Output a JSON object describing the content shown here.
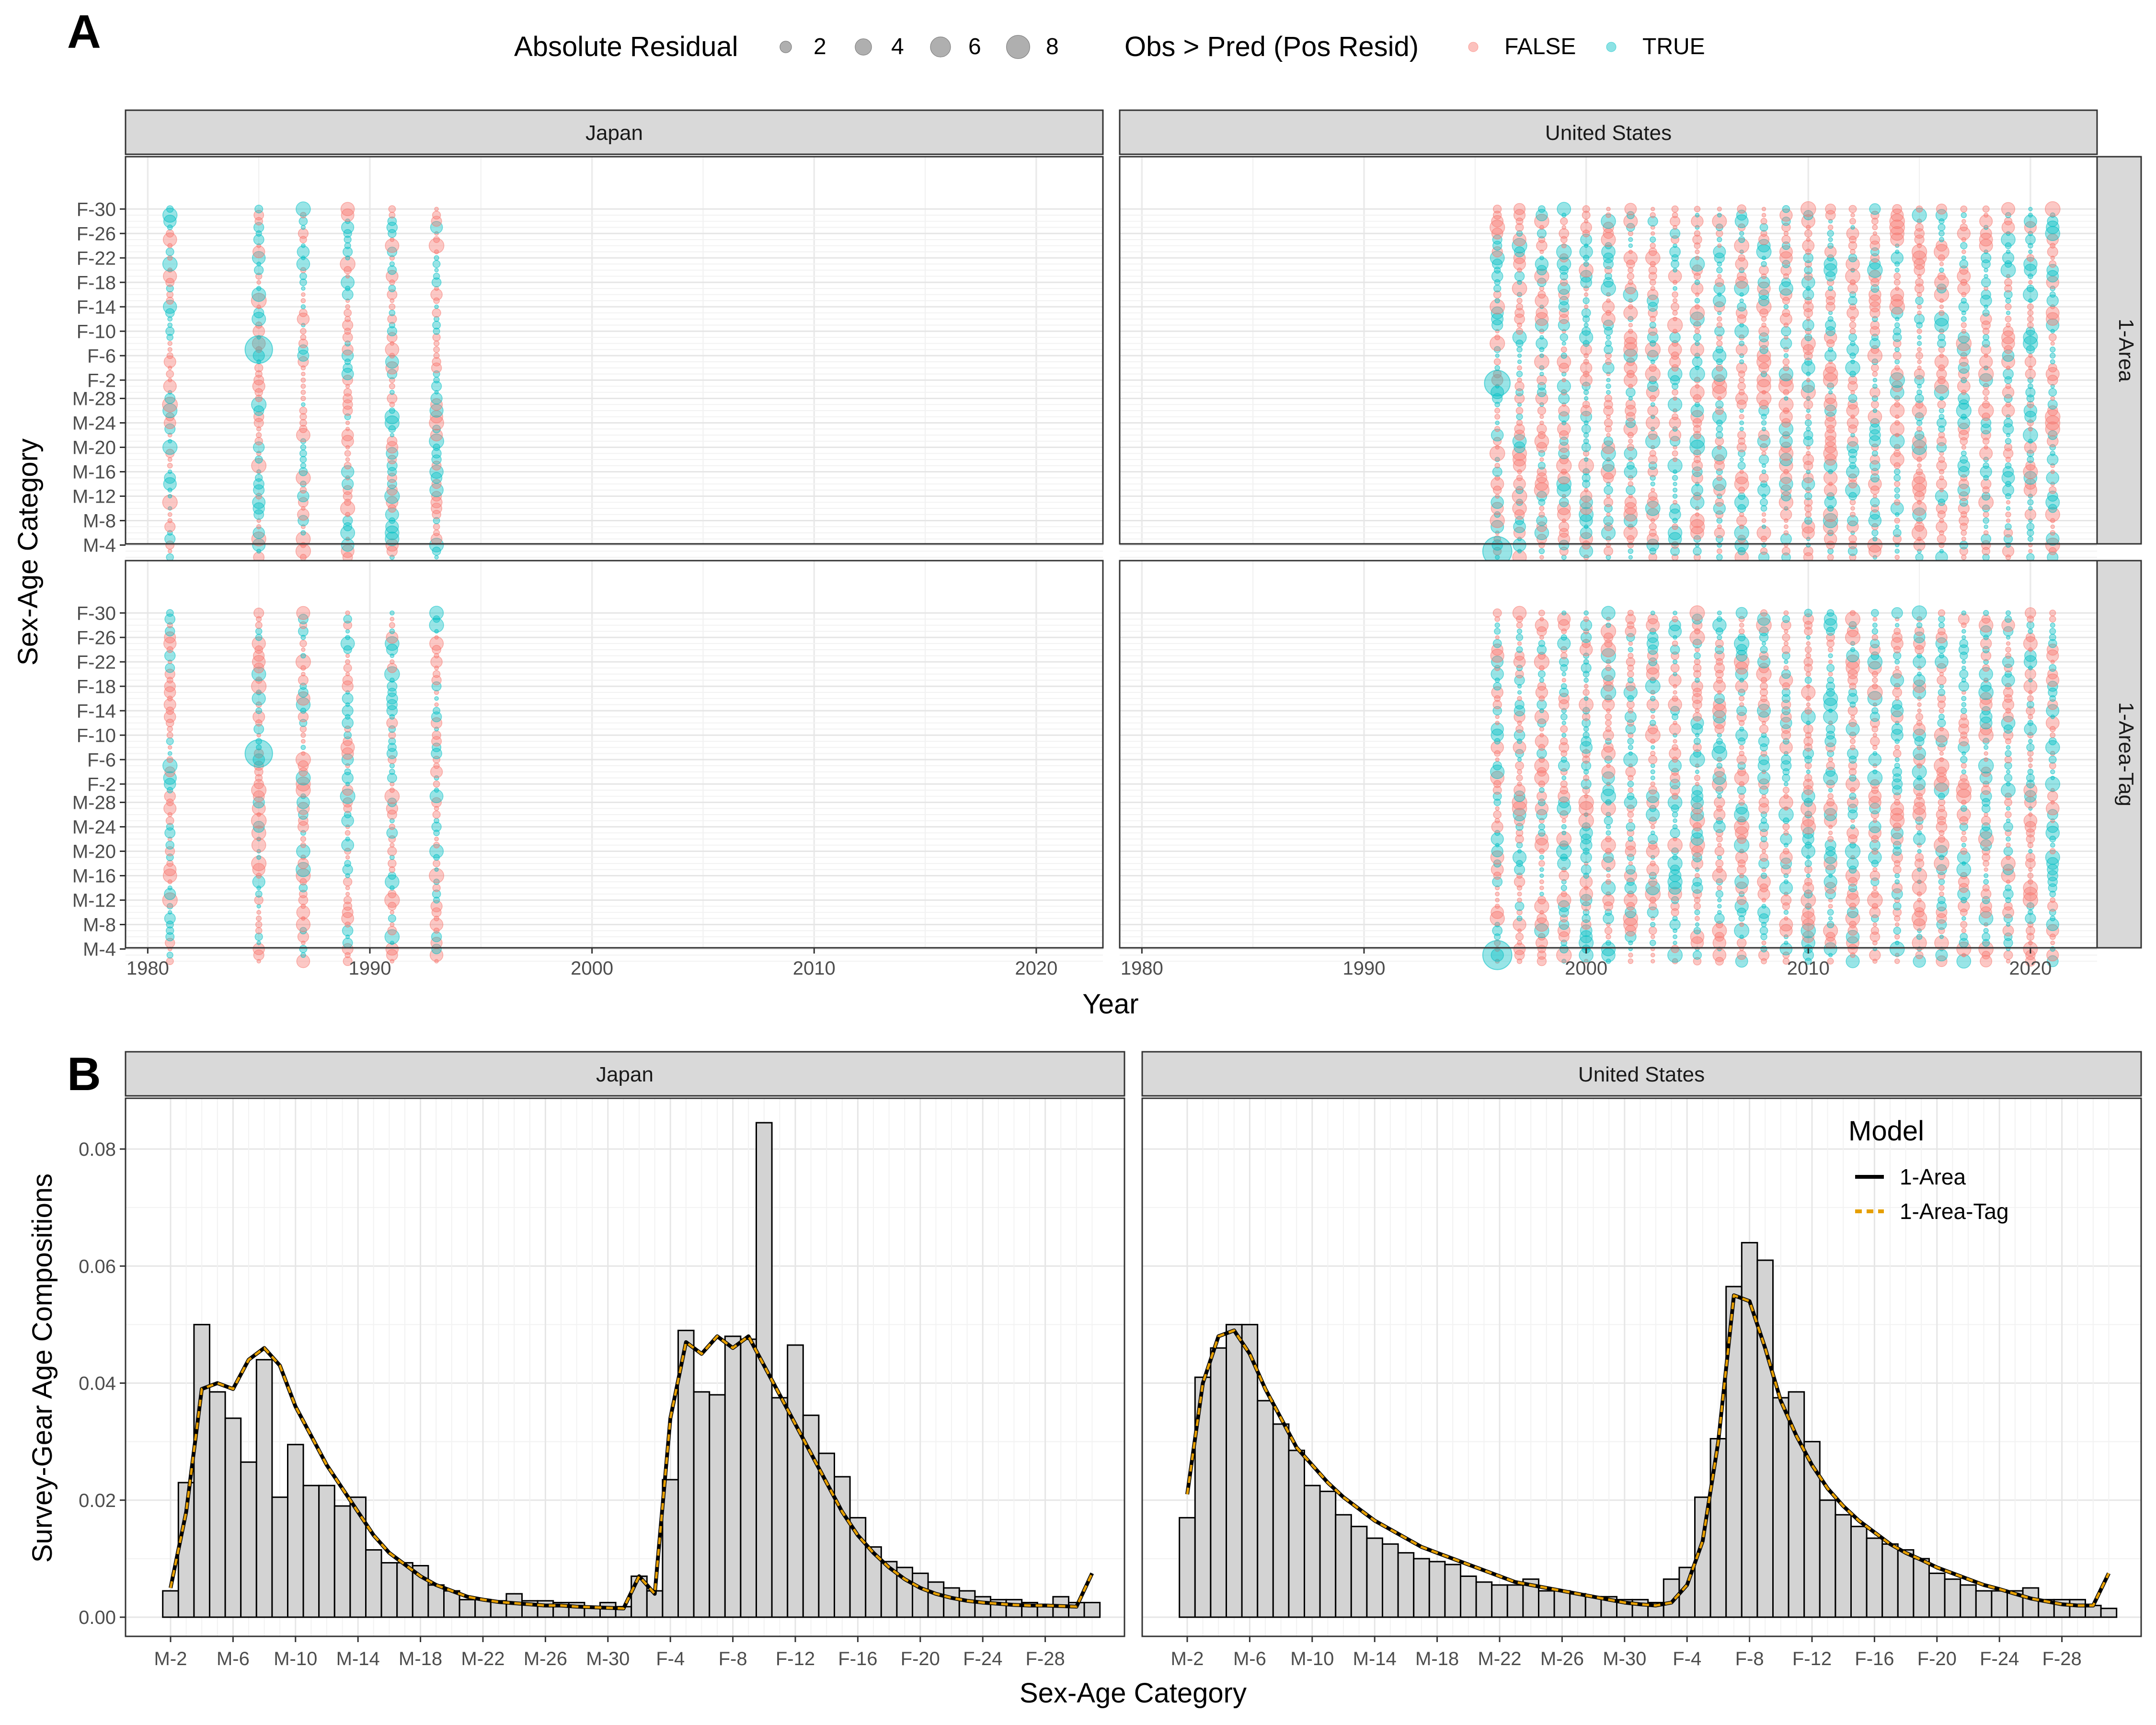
{
  "chart_data": [
    {
      "panel_letter": "A",
      "type": "scatter",
      "xlabel": "Year",
      "ylabel": "Sex-Age Category",
      "xlim": [
        1979,
        2023
      ],
      "x_ticks": [
        1980,
        1990,
        2000,
        2010,
        2020
      ],
      "y_tick_labels": [
        "M-4",
        "M-8",
        "M-12",
        "M-16",
        "M-20",
        "M-24",
        "M-28",
        "F-2",
        "F-6",
        "F-10",
        "F-14",
        "F-18",
        "F-22",
        "F-26",
        "F-30"
      ],
      "category_order": [
        "M-2",
        "M-3",
        "M-4",
        "M-5",
        "M-6",
        "M-7",
        "M-8",
        "M-9",
        "M-10",
        "M-11",
        "M-12",
        "M-13",
        "M-14",
        "M-15",
        "M-16",
        "M-17",
        "M-18",
        "M-19",
        "M-20",
        "M-21",
        "M-22",
        "M-23",
        "M-24",
        "M-25",
        "M-26",
        "M-27",
        "M-28",
        "M-29",
        "M-30",
        "F-2",
        "F-3",
        "F-4",
        "F-5",
        "F-6",
        "F-7",
        "F-8",
        "F-9",
        "F-10",
        "F-11",
        "F-12",
        "F-13",
        "F-14",
        "F-15",
        "F-16",
        "F-17",
        "F-18",
        "F-19",
        "F-20",
        "F-21",
        "F-22",
        "F-23",
        "F-24",
        "F-25",
        "F-26",
        "F-27",
        "F-28",
        "F-29",
        "F-30"
      ],
      "columns": [
        "Japan",
        "United States"
      ],
      "rows": [
        "1-Area",
        "1-Area-Tag"
      ],
      "legend_size": {
        "title": "Absolute Residual",
        "values": [
          2,
          4,
          6,
          8
        ]
      },
      "legend_color": {
        "title": "Obs > Pred (Pos Resid)",
        "labels": [
          "FALSE",
          "TRUE"
        ],
        "colors": [
          "#F8766D",
          "#00BFC4"
        ]
      },
      "grid": true,
      "years": {
        "Japan": [
          1981,
          1985,
          1987,
          1989,
          1991,
          1993
        ],
        "United States": [
          1996,
          1997,
          1998,
          1999,
          2000,
          2001,
          2002,
          2003,
          2004,
          2005,
          2006,
          2007,
          2008,
          2009,
          2010,
          2011,
          2012,
          2013,
          2014,
          2015,
          2016,
          2017,
          2018,
          2019,
          2020,
          2021
        ]
      },
      "highlighted_points": [
        {
          "facet": "Japan / 1-Area",
          "year": 1985,
          "category": "F-7",
          "abs_residual": 8,
          "positive": true
        },
        {
          "facet": "Japan / 1-Area-Tag",
          "year": 1985,
          "category": "F-7",
          "abs_residual": 8,
          "positive": true
        },
        {
          "facet": "United States / 1-Area",
          "year": 1996,
          "category": "M-3",
          "abs_residual": 9,
          "positive": true
        },
        {
          "facet": "United States / 1-Area",
          "year": 1996,
          "category": "F-1",
          "abs_residual": 7,
          "positive": true
        },
        {
          "facet": "United States / 1-Area-Tag",
          "year": 1996,
          "category": "M-3",
          "abs_residual": 9,
          "positive": true
        }
      ]
    },
    {
      "panel_letter": "B",
      "type": "bar",
      "xlabel": "Sex-Age Category",
      "ylabel": "Survey-Gear Age Compositions",
      "ylim": [
        0,
        0.088
      ],
      "y_ticks": [
        "0.00",
        "0.02",
        "0.04",
        "0.06",
        "0.08"
      ],
      "x_tick_labels": [
        "M-2",
        "M-6",
        "M-10",
        "M-14",
        "M-18",
        "M-22",
        "M-26",
        "M-30",
        "F-4",
        "F-8",
        "F-12",
        "F-16",
        "F-20",
        "F-24",
        "F-28"
      ],
      "legend": {
        "title": "Model",
        "labels": [
          "1-Area",
          "1-Area-Tag"
        ],
        "colors": [
          "#000000",
          "#E69F00"
        ]
      },
      "grid": true,
      "facets": [
        {
          "name": "Japan",
          "observed": [
            0.0045,
            0.023,
            0.05,
            0.0385,
            0.034,
            0.0265,
            0.044,
            0.0205,
            0.0295,
            0.0225,
            0.0225,
            0.019,
            0.0205,
            0.0115,
            0.0093,
            0.0093,
            0.0088,
            0.0055,
            0.0045,
            0.003,
            0.003,
            0.0028,
            0.004,
            0.0028,
            0.0028,
            0.0025,
            0.0025,
            0.0018,
            0.0025,
            0.0018,
            0.007,
            0.0045,
            0.0235,
            0.049,
            0.0385,
            0.038,
            0.048,
            0.0475,
            0.0845,
            0.0375,
            0.0465,
            0.0345,
            0.028,
            0.024,
            0.017,
            0.012,
            0.0095,
            0.0085,
            0.0075,
            0.006,
            0.005,
            0.0045,
            0.0035,
            0.003,
            0.003,
            0.0025,
            0.002,
            0.0035,
            0.0025,
            0.0025
          ],
          "predicted": [
            0.005,
            0.018,
            0.039,
            0.04,
            0.039,
            0.044,
            0.046,
            0.043,
            0.036,
            0.031,
            0.026,
            0.022,
            0.018,
            0.014,
            0.011,
            0.009,
            0.007,
            0.0055,
            0.0045,
            0.0035,
            0.003,
            0.0026,
            0.0024,
            0.0022,
            0.002,
            0.002,
            0.0018,
            0.0017,
            0.0016,
            0.0015,
            0.007,
            0.004,
            0.034,
            0.047,
            0.045,
            0.048,
            0.046,
            0.048,
            0.043,
            0.038,
            0.033,
            0.028,
            0.023,
            0.018,
            0.014,
            0.011,
            0.0085,
            0.0065,
            0.005,
            0.004,
            0.0033,
            0.0028,
            0.0025,
            0.0023,
            0.0021,
            0.002,
            0.002,
            0.0019,
            0.0018,
            0.0075
          ]
        },
        {
          "name": "United States",
          "observed": [
            0.017,
            0.041,
            0.046,
            0.05,
            0.05,
            0.037,
            0.033,
            0.0285,
            0.0225,
            0.0215,
            0.0175,
            0.0155,
            0.0135,
            0.0125,
            0.011,
            0.01,
            0.0095,
            0.009,
            0.007,
            0.006,
            0.0055,
            0.0055,
            0.0065,
            0.0045,
            0.0045,
            0.004,
            0.0035,
            0.0035,
            0.003,
            0.003,
            0.0025,
            0.0065,
            0.0085,
            0.0205,
            0.0305,
            0.0565,
            0.064,
            0.061,
            0.0375,
            0.0385,
            0.03,
            0.02,
            0.0175,
            0.0155,
            0.0135,
            0.0125,
            0.0115,
            0.01,
            0.0075,
            0.0065,
            0.0055,
            0.0045,
            0.0045,
            0.0045,
            0.005,
            0.003,
            0.003,
            0.003,
            0.002,
            0.0015
          ],
          "predicted": [
            0.021,
            0.04,
            0.048,
            0.049,
            0.045,
            0.039,
            0.034,
            0.029,
            0.026,
            0.023,
            0.0205,
            0.0185,
            0.0165,
            0.015,
            0.0135,
            0.012,
            0.011,
            0.01,
            0.009,
            0.008,
            0.007,
            0.006,
            0.0055,
            0.005,
            0.0045,
            0.004,
            0.0035,
            0.003,
            0.0025,
            0.0022,
            0.002,
            0.0025,
            0.0055,
            0.013,
            0.03,
            0.055,
            0.054,
            0.046,
            0.037,
            0.031,
            0.026,
            0.022,
            0.019,
            0.0165,
            0.0145,
            0.0125,
            0.011,
            0.0098,
            0.0085,
            0.0075,
            0.0065,
            0.0055,
            0.0048,
            0.004,
            0.0032,
            0.0027,
            0.0022,
            0.002,
            0.002,
            0.0075
          ]
        }
      ]
    }
  ]
}
